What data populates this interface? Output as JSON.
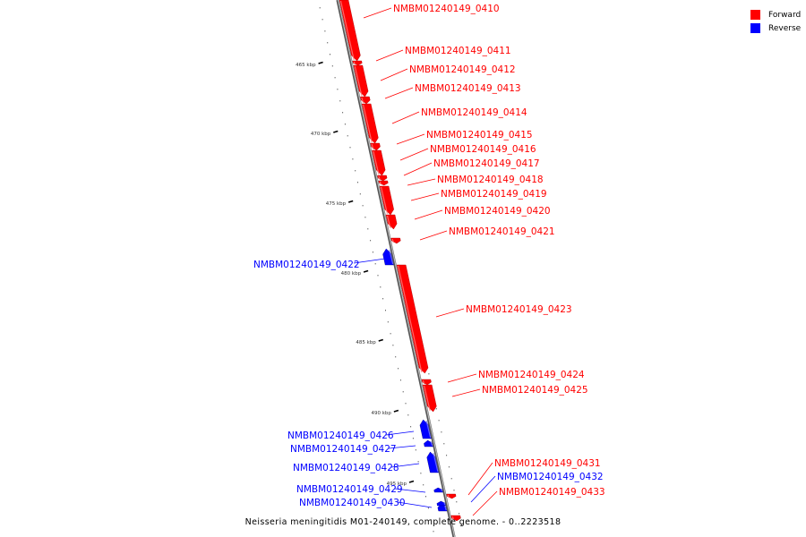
{
  "legend": {
    "forward_label": "Forward",
    "reverse_label": "Reverse",
    "forward_color": "#ff0000",
    "reverse_color": "#0000ff"
  },
  "caption": "Neisseria meningitidis M01-240149, complete genome. - 0..2223518",
  "ticks": [
    "465 kbp",
    "470 kbp",
    "475 kbp",
    "480 kbp",
    "485 kbp",
    "490 kbp",
    "495 kbp"
  ],
  "genes": [
    {
      "id": "NMBM01240149_0410",
      "strand": "forward"
    },
    {
      "id": "NMBM01240149_0411",
      "strand": "forward"
    },
    {
      "id": "NMBM01240149_0412",
      "strand": "forward"
    },
    {
      "id": "NMBM01240149_0413",
      "strand": "forward"
    },
    {
      "id": "NMBM01240149_0414",
      "strand": "forward"
    },
    {
      "id": "NMBM01240149_0415",
      "strand": "forward"
    },
    {
      "id": "NMBM01240149_0416",
      "strand": "forward"
    },
    {
      "id": "NMBM01240149_0417",
      "strand": "forward"
    },
    {
      "id": "NMBM01240149_0418",
      "strand": "forward"
    },
    {
      "id": "NMBM01240149_0419",
      "strand": "forward"
    },
    {
      "id": "NMBM01240149_0420",
      "strand": "forward"
    },
    {
      "id": "NMBM01240149_0421",
      "strand": "forward"
    },
    {
      "id": "NMBM01240149_0422",
      "strand": "reverse"
    },
    {
      "id": "NMBM01240149_0423",
      "strand": "forward"
    },
    {
      "id": "NMBM01240149_0424",
      "strand": "forward"
    },
    {
      "id": "NMBM01240149_0425",
      "strand": "forward"
    },
    {
      "id": "NMBM01240149_0426",
      "strand": "reverse"
    },
    {
      "id": "NMBM01240149_0427",
      "strand": "reverse"
    },
    {
      "id": "NMBM01240149_0428",
      "strand": "reverse"
    },
    {
      "id": "NMBM01240149_0429",
      "strand": "reverse"
    },
    {
      "id": "NMBM01240149_0430",
      "strand": "reverse"
    },
    {
      "id": "NMBM01240149_0431",
      "strand": "forward"
    },
    {
      "id": "NMBM01240149_0432",
      "strand": "reverse"
    },
    {
      "id": "NMBM01240149_0433",
      "strand": "forward"
    }
  ]
}
